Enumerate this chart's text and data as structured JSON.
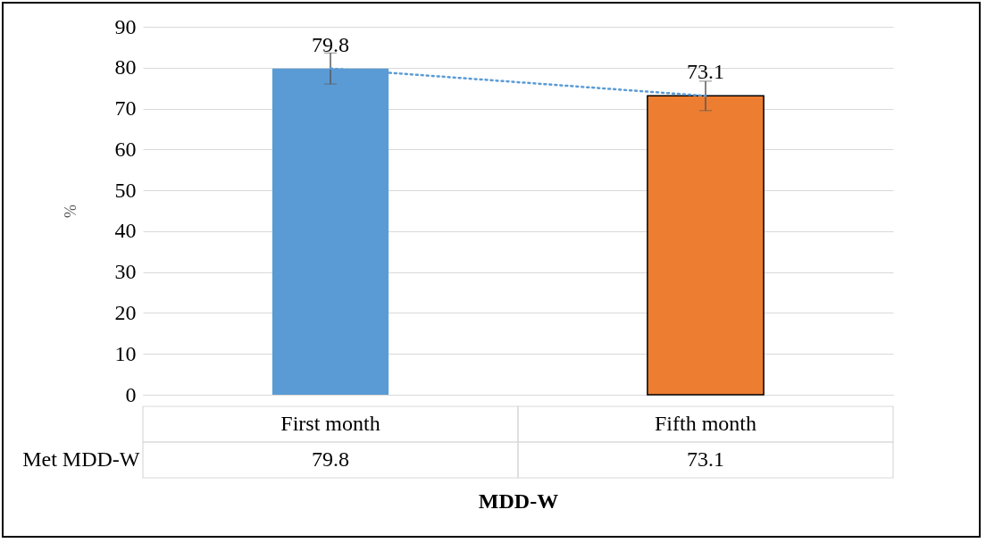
{
  "chart_data": {
    "type": "bar",
    "xlabel": "MDD-W",
    "ylabel": "%",
    "categories": [
      "First month",
      "Fifth month"
    ],
    "series": [
      {
        "name": "Met MDD-W",
        "values": [
          79.8,
          73.1
        ],
        "colors": [
          "#5b9bd5",
          "#ed7d31"
        ],
        "errors": [
          3.8,
          3.6
        ]
      },
      {
        "type": "line",
        "values": [
          79.8,
          73.1
        ],
        "color": "#5b9bd5",
        "line_style": "dotted",
        "marker": "none"
      }
    ],
    "ylim": [
      0,
      90
    ],
    "yticks": [
      0,
      10,
      20,
      30,
      40,
      50,
      60,
      70,
      80,
      90
    ],
    "grid": "y",
    "data_labels": true
  }
}
